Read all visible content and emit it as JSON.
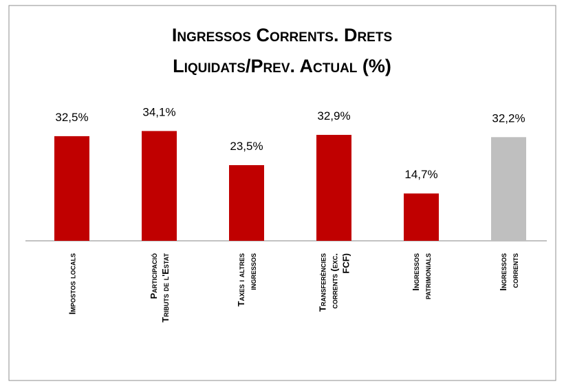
{
  "chart_data": {
    "type": "bar",
    "title": "Ingressos Corrents. Drets Liquidats/Prev. Actual (%)",
    "categories": [
      "Impostos locals",
      "Participació Tributs de l'Estat",
      "Taxes i altres ingressos",
      "Transferències corrents (exc. FCF)",
      "Ingressos patrimonials",
      "Ingressos corrents"
    ],
    "values": [
      32.5,
      34.1,
      23.5,
      32.9,
      14.7,
      32.2
    ],
    "value_labels": [
      "32,5%",
      "34,1%",
      "23,5%",
      "32,9%",
      "14,7%",
      "32,2%"
    ],
    "colors": [
      "#c00000",
      "#c00000",
      "#c00000",
      "#c00000",
      "#c00000",
      "#bfbfbf"
    ]
  }
}
